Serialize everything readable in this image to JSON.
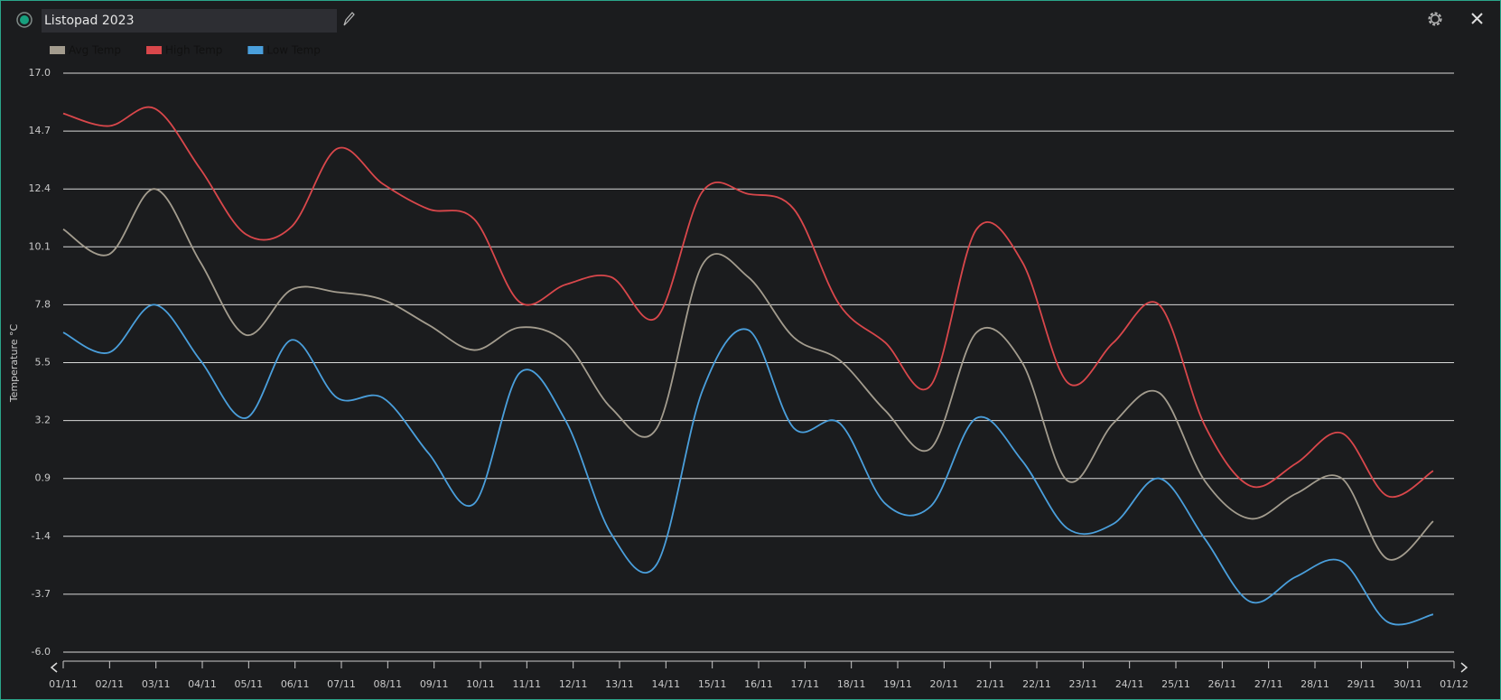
{
  "window": {
    "title": "Listopad 2023"
  },
  "chart_data": {
    "type": "line",
    "ylabel": "Temperature °C",
    "categories": [
      "01/11",
      "02/11",
      "03/11",
      "04/11",
      "05/11",
      "06/11",
      "07/11",
      "08/11",
      "09/11",
      "10/11",
      "11/11",
      "12/11",
      "13/11",
      "14/11",
      "15/11",
      "16/11",
      "17/11",
      "18/11",
      "19/11",
      "20/11",
      "21/11",
      "22/11",
      "23/11",
      "24/11",
      "25/11",
      "26/11",
      "27/11",
      "28/11",
      "29/11",
      "30/11",
      "01/12"
    ],
    "ylim": [
      -6,
      17
    ],
    "yticks": [
      {
        "value": -6,
        "label": "-6.0"
      },
      -3.7,
      -1.4,
      0.9,
      3.2,
      5.5,
      7.8,
      10.1,
      12.4,
      14.7,
      {
        "value": 17,
        "label": "17.0"
      }
    ],
    "grid": true,
    "legend": "top-left",
    "series": [
      {
        "name": "Avg Temp",
        "color": "#a39c8e",
        "values": [
          10.8,
          9.8,
          12.4,
          9.5,
          6.6,
          8.4,
          8.3,
          8.0,
          7.0,
          6.0,
          6.9,
          6.3,
          3.7,
          2.9,
          9.4,
          8.9,
          6.5,
          5.6,
          3.6,
          2.1,
          6.7,
          5.5,
          0.8,
          3.1,
          4.3,
          0.8,
          -0.7,
          0.3,
          0.9,
          -2.3,
          -0.8
        ]
      },
      {
        "name": "High Temp",
        "color": "#d9474b",
        "values": [
          15.4,
          14.9,
          15.6,
          13.2,
          10.6,
          10.9,
          14.0,
          12.6,
          11.6,
          11.2,
          7.9,
          8.6,
          8.9,
          7.3,
          12.3,
          12.2,
          11.6,
          7.8,
          6.3,
          4.6,
          10.8,
          9.5,
          4.7,
          6.3,
          7.8,
          3.0,
          0.6,
          1.5,
          2.7,
          0.2,
          1.2
        ]
      },
      {
        "name": "Low Temp",
        "color": "#4a9fdc",
        "values": [
          6.7,
          5.9,
          7.8,
          5.6,
          3.3,
          6.4,
          4.1,
          4.1,
          1.9,
          -0.1,
          5.1,
          3.2,
          -1.3,
          -2.5,
          4.4,
          6.8,
          2.9,
          3.1,
          -0.1,
          -0.2,
          3.3,
          1.6,
          -1.1,
          -0.9,
          0.9,
          -1.5,
          -4.0,
          -3.0,
          -2.4,
          -4.8,
          -4.5
        ]
      }
    ]
  }
}
